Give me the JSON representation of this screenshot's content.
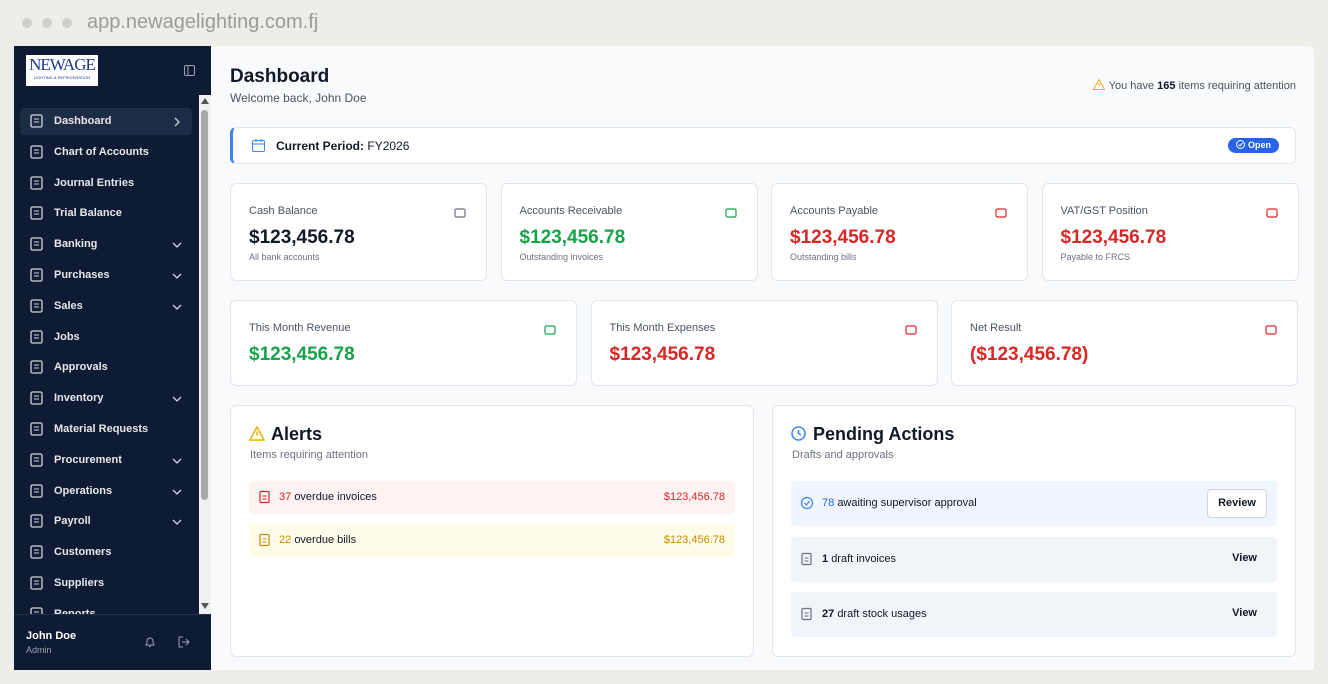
{
  "browser": {
    "url": "app.newagelighting.com.fj"
  },
  "sidebar": {
    "logo": {
      "name": "NEWAGE",
      "tagline": "LIGHTING & REFRIGERATION"
    },
    "nav": [
      {
        "label": "Dashboard",
        "active": true,
        "chevron": "right"
      },
      {
        "label": "Chart of Accounts"
      },
      {
        "label": "Journal Entries"
      },
      {
        "label": "Trial Balance"
      },
      {
        "label": "Banking",
        "chevron": "down"
      },
      {
        "label": "Purchases",
        "chevron": "down"
      },
      {
        "label": "Sales",
        "chevron": "down"
      },
      {
        "label": "Jobs"
      },
      {
        "label": "Approvals"
      },
      {
        "label": "Inventory",
        "chevron": "down"
      },
      {
        "label": "Material Requests"
      },
      {
        "label": "Procurement",
        "chevron": "down"
      },
      {
        "label": "Operations",
        "chevron": "down"
      },
      {
        "label": "Payroll",
        "chevron": "down"
      },
      {
        "label": "Customers"
      },
      {
        "label": "Suppliers"
      },
      {
        "label": "Reports"
      }
    ],
    "user": {
      "name": "John Doe",
      "role": "Admin"
    }
  },
  "header": {
    "title": "Dashboard",
    "subtitle": "Welcome back, John Doe",
    "attention": {
      "prefix": "You have",
      "count": 165,
      "suffix": "items requiring attention"
    }
  },
  "period": {
    "label": "Current Period:",
    "value": "FY2026",
    "status": "Open"
  },
  "stats_top": [
    {
      "label": "Cash Balance",
      "value": "$123,456.78",
      "note": "All bank accounts",
      "color": "#111827"
    },
    {
      "label": "Accounts Receivable",
      "value": "$123,456.78",
      "note": "Outstanding invoices",
      "color": "#16a34a"
    },
    {
      "label": "Accounts Payable",
      "value": "$123,456.78",
      "note": "Outstanding bills",
      "color": "#dc2626"
    },
    {
      "label": "VAT/GST Position",
      "value": "$123,456.78",
      "note": "Payable to FRCS",
      "color": "#dc2626"
    }
  ],
  "stats_month": [
    {
      "label": "This Month Revenue",
      "value": "$123,456.78",
      "color": "#16a34a"
    },
    {
      "label": "This Month Expenses",
      "value": "$123,456.78",
      "color": "#dc2626"
    },
    {
      "label": "Net Result",
      "value": "($123,456.78)",
      "color": "#dc2626"
    }
  ],
  "alerts": {
    "title": "Alerts",
    "subtitle": "Items requiring attention",
    "items": [
      {
        "count": 37,
        "text": "overdue invoices",
        "amount": "$123,456.78",
        "color": "#dc2626",
        "bg": "#fef2f2"
      },
      {
        "count": 22,
        "text": "overdue bills",
        "amount": "$123,456.78",
        "color": "#ca8a04",
        "bg": "#fefce8"
      }
    ]
  },
  "pending": {
    "title": "Pending Actions",
    "subtitle": "Drafts and approvals",
    "items": [
      {
        "count": 78,
        "text": "awaiting supervisor approval",
        "action": "Review",
        "highlight": true
      },
      {
        "count": 1,
        "text": "draft invoices",
        "action": "View"
      },
      {
        "count": 27,
        "text": "draft stock usages",
        "action": "View"
      }
    ]
  }
}
